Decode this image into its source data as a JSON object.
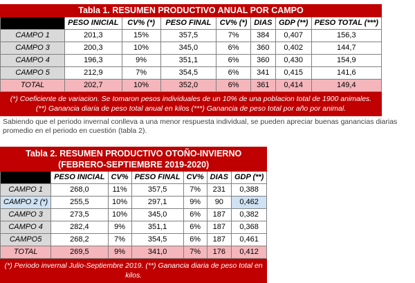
{
  "table1": {
    "title": "Tabla 1. RESUMEN PRODUCTIVO ANUAL POR CAMPO",
    "headers": [
      "PESO INICIAL",
      "CV% (*)",
      "PESO FINAL",
      "CV% (*)",
      "DIAS",
      "GDP (**)",
      "PESO TOTAL (***)"
    ],
    "rows": [
      {
        "label": "CAMPO 1",
        "values": [
          "201,3",
          "15%",
          "357,5",
          "7%",
          "384",
          "0,407",
          "156,3"
        ]
      },
      {
        "label": "CAMPO 3",
        "values": [
          "200,3",
          "10%",
          "345,0",
          "6%",
          "360",
          "0,402",
          "144,7"
        ]
      },
      {
        "label": "CAMPO 4",
        "values": [
          "196,3",
          "9%",
          "351,1",
          "6%",
          "360",
          "0,430",
          "154,9"
        ]
      },
      {
        "label": "CAMPO 5",
        "values": [
          "212,9",
          "7%",
          "354,5",
          "6%",
          "341",
          "0,415",
          "141,6"
        ]
      }
    ],
    "total": {
      "label": "TOTAL",
      "values": [
        "202,7",
        "10%",
        "352,0",
        "6%",
        "361",
        "0,414",
        "149,4"
      ]
    },
    "note_line1": "(*) Coeficiente de variacion. Se tomaron pesos individuales de un 10% de una poblacion total de 1900 animales.",
    "note_line2": "(**) Ganancia diaria de peso total anual en kilos (***) Ganancia de peso total por año por animal."
  },
  "paragraph": "Sabiendo que el periodo invernal conlleva a una menor respuesta individual, se pueden apreciar buenas ganancias diarias promedio en el periodo en cuestión (tabla 2).",
  "table2": {
    "title_line1": "Tabla 2. RESUMEN PRODUCTIVO OTOÑO-INVIERNO",
    "title_line2": "(FEBRERO-SEPTIEMBRE 2019-2020)",
    "headers": [
      "PESO INICIAL",
      "CV%",
      "PESO FINAL",
      "CV%",
      "DIAS",
      "GDP (**)"
    ],
    "rows": [
      {
        "label": "CAMPO 1",
        "values": [
          "268,0",
          "11%",
          "357,5",
          "7%",
          "231",
          "0,388"
        ]
      },
      {
        "label": "CAMPO 2 (*)",
        "values": [
          "255,5",
          "10%",
          "297,1",
          "9%",
          "90",
          "0,462"
        ]
      },
      {
        "label": "CAMPO 3",
        "values": [
          "273,5",
          "10%",
          "345,0",
          "6%",
          "187",
          "0,382"
        ]
      },
      {
        "label": "CAMPO 4",
        "values": [
          "282,4",
          "9%",
          "351,1",
          "6%",
          "187",
          "0,368"
        ]
      },
      {
        "label": "CAMPO5",
        "values": [
          "268,2",
          "7%",
          "354,5",
          "6%",
          "187",
          "0,461"
        ]
      }
    ],
    "total": {
      "label": "TOTAL",
      "values": [
        "269,5",
        "9%",
        "341,0",
        "7%",
        "176",
        "0,412"
      ]
    },
    "note": "(*) Periodo invernal Julio-Septiembre 2019. (**) Ganancia diaria de peso total en kilos."
  }
}
